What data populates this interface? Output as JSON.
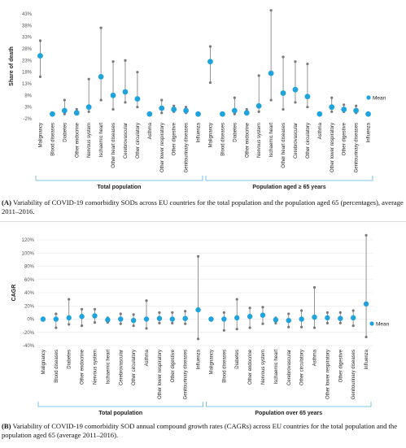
{
  "colors": {
    "marker": "#1fa3dc",
    "whisker": "#7a7a7a",
    "bracket": "#5bb3dc",
    "grid": "#e3e3e3"
  },
  "panels": [
    {
      "caption_tag": "(A)",
      "caption_text": "Variability of COVID-19 comorbidity SODs across EU countries for the total population and the population aged 65 (percentages), average 2011–2016.",
      "groups": [
        "Total population",
        "Population aged ≥ 65 years"
      ]
    },
    {
      "caption_tag": "(B)",
      "caption_text": "Variability of COVID-19 comorbidity SOD annual compound growth rates (CAGRs) across EU countries for the total population and the population aged 65 (average 2011–2016).",
      "groups": [
        "Total population",
        "Population over 65 years"
      ]
    }
  ],
  "chart_data": [
    {
      "type": "scatter",
      "ylabel": "Share of death",
      "legend": "Mean",
      "legend_position": "right",
      "ylim": [
        -2,
        43
      ],
      "yticks": [
        "-2%",
        "3%",
        "8%",
        "13%",
        "18%",
        "23%",
        "28%",
        "33%",
        "38%",
        "43%"
      ],
      "grid": false,
      "categories": [
        "Malignancy",
        "Blood diseases",
        "Diabetes",
        "Other endocrine",
        "Nervous system",
        "Ischaemic heart",
        "Other heart diseases",
        "Cerebrovascular",
        "Other circulatory",
        "Asthma",
        "Other lower respiratory",
        "Other digestive",
        "Genitourinary diseases",
        "Influenza",
        "Malignancy",
        "Blood diseases",
        "Diabetes",
        "Other endocrine",
        "Nervous system",
        "Ischaemic heart",
        "Other heart diseases",
        "Cerebrovascular",
        "Other circulatory",
        "Asthma",
        "Other lower respiratory",
        "Other digestive",
        "Genitourinary diseases",
        "Influenza"
      ],
      "mean": [
        25,
        0,
        1.5,
        0.5,
        3,
        16,
        8,
        9.5,
        6.5,
        0,
        2.5,
        2,
        1.5,
        0,
        22.5,
        0,
        1.5,
        0.5,
        3.5,
        17.5,
        9,
        10.5,
        7.5,
        0,
        3,
        2,
        1.5,
        0
      ],
      "min": [
        16,
        0,
        0,
        0,
        1,
        6,
        2,
        5,
        3,
        0,
        0.5,
        1,
        0.5,
        0,
        13.5,
        0,
        0,
        0,
        1,
        6,
        2,
        5,
        3,
        0,
        1,
        1,
        0.5,
        0
      ],
      "max": [
        31.5,
        0.5,
        6,
        2,
        15,
        37,
        22.5,
        23,
        18,
        0.5,
        6,
        3.5,
        3,
        0.5,
        29,
        0.5,
        7,
        2,
        16.5,
        44.5,
        24.5,
        22.5,
        21.5,
        0.5,
        7,
        4,
        3.5,
        0.5
      ]
    },
    {
      "type": "scatter",
      "ylabel": "CAGR",
      "legend": "Mean",
      "legend_position": "right",
      "ylim": [
        -40,
        120
      ],
      "yticks": [
        "-40%",
        "-20%",
        "0%",
        "20%",
        "40%",
        "60%",
        "80%",
        "100%",
        "120%"
      ],
      "grid": true,
      "categories": [
        "Malignancy",
        "Blood diseases",
        "Diabetes",
        "Other endocrine",
        "Nervous system",
        "Ischaemic heart",
        "Cerebrovascular",
        "Other circulatory",
        "Asthma",
        "Other lower respiratory",
        "Other digestive",
        "Genitourinary diseases",
        "Influenza",
        "Malignancy",
        "Blood diseases",
        "Diabetes",
        "Other endocrine",
        "Nervous system",
        "Ischaemic heart",
        "Cerebrovascular",
        "Other circulatory",
        "Asthma",
        "Other lower respiratory",
        "Other digestive",
        "Genitourinary diseases",
        "Influenza"
      ],
      "mean": [
        0,
        0,
        2,
        4,
        5,
        -1,
        0,
        -2,
        0,
        1,
        0,
        1,
        14,
        0,
        0,
        2,
        4,
        6,
        -1,
        -2,
        0,
        3,
        2,
        1,
        2,
        23
      ],
      "min": [
        -2,
        -13,
        -8,
        -10,
        -5,
        -5,
        -7,
        -10,
        -14,
        -6,
        -6,
        -7,
        -30,
        -2,
        -17,
        -15,
        -13,
        -7,
        -6,
        -12,
        -12,
        -13,
        -6,
        -6,
        -10,
        -27
      ],
      "max": [
        2,
        8,
        30,
        15,
        15,
        2,
        8,
        7,
        28,
        10,
        10,
        12,
        95,
        2,
        10,
        30,
        17,
        18,
        2,
        8,
        13,
        48,
        10,
        10,
        13,
        127
      ]
    }
  ]
}
